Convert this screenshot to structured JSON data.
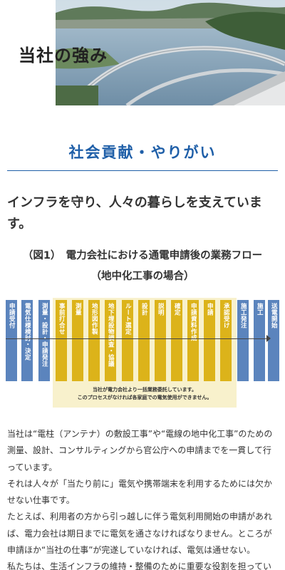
{
  "hero": {
    "title": "当社の強み"
  },
  "section": {
    "title": "社会貢献・やりがい"
  },
  "lead": "インフラを守り、人々の暮らしを支えています。",
  "figure": {
    "caption_line1": "（図1）　電力会社における通電申請後の業務フロー",
    "caption_line2": "（地中化工事の場合）",
    "steps": [
      {
        "label": "申請受付",
        "color": "#5b84bd"
      },
      {
        "label": "電気仕様検討・決定",
        "color": "#5b84bd"
      },
      {
        "label": "測量・設計・申請発注",
        "color": "#5b84bd"
      },
      {
        "label": "事前打合せ",
        "color": "#dcb31a"
      },
      {
        "label": "測量",
        "color": "#dcb31a"
      },
      {
        "label": "地形図作製",
        "color": "#dcb31a"
      },
      {
        "label": "地下埋設物調査・協議",
        "color": "#dcb31a"
      },
      {
        "label": "ルート選定",
        "color": "#dcb31a"
      },
      {
        "label": "設計",
        "color": "#dcb31a"
      },
      {
        "label": "説明",
        "color": "#dcb31a"
      },
      {
        "label": "確定",
        "color": "#dcb31a"
      },
      {
        "label": "申請資料作成",
        "color": "#dcb31a"
      },
      {
        "label": "申請",
        "color": "#dcb31a"
      },
      {
        "label": "承認受け",
        "color": "#dcb31a"
      },
      {
        "label": "施工発注",
        "color": "#5b84bd"
      },
      {
        "label": "施工",
        "color": "#5b84bd"
      },
      {
        "label": "送電開始",
        "color": "#5b84bd"
      }
    ],
    "note_line1": "当社が電力会社より一括業務委託しています。",
    "note_line2": "このプロセスがなければ各家庭での電気使用ができません。"
  },
  "body": {
    "p1": "当社は“電柱（アンテナ）の敷設工事”や“電線の地中化工事”のための測量、設計、コンサルティングから官公庁への申請までを一貫して行っています。",
    "p2": "それは人々が「当たり前に」電気や携帯端末を利用するためには欠かせない仕事です。",
    "p3": "たとえば、利用者の方から引っ越しに伴う電気利用開始の申請があれば、電力会社は期日までに電気を通さなければなりません。ところが申請ほか“当社の仕事”が完遂していなければ、電気は通せない。",
    "p4": "私たちは、生活インフラの維持・整備のために重要な役割を担っていま"
  }
}
